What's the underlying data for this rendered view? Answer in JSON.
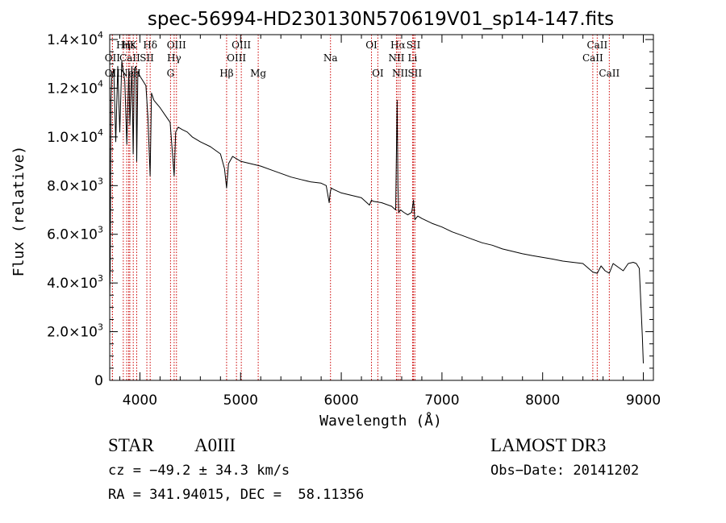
{
  "chart_data": {
    "type": "line",
    "title": "spec-56994-HD230130N570619V01_sp14-147.fits",
    "xlabel": "Wavelength (Å)",
    "ylabel": "Flux (relative)",
    "xlim": [
      3700,
      9100
    ],
    "ylim": [
      0,
      14200
    ],
    "xticks": [
      4000,
      5000,
      6000,
      7000,
      8000,
      9000
    ],
    "xtick_labels": [
      "4000",
      "5000",
      "6000",
      "7000",
      "8000",
      "9000"
    ],
    "yticks": [
      0,
      2000,
      4000,
      6000,
      8000,
      10000,
      12000,
      14000
    ],
    "ytick_labels": [
      {
        "mant": "0",
        "exp": ""
      },
      {
        "mant": "2.0×10",
        "exp": "3"
      },
      {
        "mant": "4.0×10",
        "exp": "3"
      },
      {
        "mant": "6.0×10",
        "exp": "3"
      },
      {
        "mant": "8.0×10",
        "exp": "3"
      },
      {
        "mant": "1.0×10",
        "exp": "4"
      },
      {
        "mant": "1.2×10",
        "exp": "4"
      },
      {
        "mant": "1.4×10",
        "exp": "4"
      }
    ],
    "spectrum": {
      "name": "flux",
      "x": [
        3700,
        3705,
        3712,
        3720,
        3740,
        3760,
        3780,
        3800,
        3820,
        3850,
        3870,
        3890,
        3900,
        3920,
        3933,
        3945,
        3960,
        3968,
        3980,
        4000,
        4030,
        4060,
        4080,
        4101,
        4115,
        4140,
        4200,
        4250,
        4300,
        4320,
        4340,
        4355,
        4380,
        4420,
        4470,
        4520,
        4600,
        4700,
        4800,
        4840,
        4861,
        4880,
        4920,
        5000,
        5100,
        5200,
        5300,
        5400,
        5500,
        5600,
        5700,
        5800,
        5850,
        5880,
        5890,
        5900,
        5920,
        6000,
        6100,
        6200,
        6280,
        6300,
        6320,
        6400,
        6500,
        6540,
        6555,
        6563,
        6570,
        6590,
        6620,
        6660,
        6700,
        6717,
        6731,
        6760,
        6800,
        6900,
        7000,
        7100,
        7200,
        7300,
        7400,
        7500,
        7600,
        7700,
        7800,
        7900,
        8000,
        8100,
        8200,
        8300,
        8400,
        8498,
        8542,
        8580,
        8620,
        8662,
        8700,
        8750,
        8800,
        8850,
        8900,
        8930,
        8960,
        8990,
        9000
      ],
      "y": [
        3400,
        4600,
        11500,
        12400,
        12800,
        9800,
        12900,
        10200,
        13100,
        12300,
        9700,
        12800,
        10500,
        12900,
        9300,
        12800,
        12900,
        9000,
        12700,
        12500,
        12300,
        12100,
        10800,
        8400,
        11800,
        11500,
        11200,
        10900,
        10600,
        9500,
        8400,
        10200,
        10400,
        10300,
        10200,
        10000,
        9800,
        9600,
        9300,
        8700,
        7900,
        8900,
        9200,
        9000,
        8900,
        8800,
        8650,
        8500,
        8350,
        8250,
        8150,
        8100,
        8000,
        7300,
        7700,
        7900,
        7850,
        7700,
        7600,
        7500,
        7200,
        7400,
        7350,
        7300,
        7150,
        7000,
        11500,
        8000,
        6900,
        7000,
        6900,
        6800,
        6900,
        7400,
        6600,
        6750,
        6650,
        6450,
        6300,
        6100,
        5950,
        5800,
        5650,
        5550,
        5400,
        5300,
        5200,
        5120,
        5050,
        4980,
        4900,
        4850,
        4800,
        4450,
        4400,
        4700,
        4500,
        4400,
        4800,
        4650,
        4500,
        4800,
        4850,
        4800,
        4600,
        1800,
        700
      ]
    },
    "line_markers": [
      {
        "label": "Hη",
        "wave": 3835,
        "row": 1
      },
      {
        "label": "Hε",
        "wave": 3889,
        "row": 1
      },
      {
        "label": "K",
        "wave": 3934,
        "row": 1
      },
      {
        "label": "Hδ",
        "wave": 4102,
        "row": 1
      },
      {
        "label": "OII",
        "wave": 3727,
        "row": 2
      },
      {
        "label": "CaII",
        "wave": 3900,
        "row": 2
      },
      {
        "label": "SII",
        "wave": 4069,
        "row": 2
      },
      {
        "label": "OII",
        "wave": 3727,
        "row": 3
      },
      {
        "label": "Ne",
        "wave": 3869,
        "row": 3
      },
      {
        "label": "H",
        "wave": 3968,
        "row": 3
      },
      {
        "label": "OIII",
        "wave": 4363,
        "row": 1
      },
      {
        "label": "Hγ",
        "wave": 4340,
        "row": 2
      },
      {
        "label": "G",
        "wave": 4304,
        "row": 3
      },
      {
        "label": "OIII",
        "wave": 5007,
        "row": 1
      },
      {
        "label": "OIII",
        "wave": 4959,
        "row": 2
      },
      {
        "label": "Hβ",
        "wave": 4861,
        "row": 3
      },
      {
        "label": "Mg",
        "wave": 5175,
        "row": 3
      },
      {
        "label": "Na",
        "wave": 5893,
        "row": 2
      },
      {
        "label": "OI",
        "wave": 6300,
        "row": 1
      },
      {
        "label": "OI",
        "wave": 6363,
        "row": 3
      },
      {
        "label": "Hα",
        "wave": 6563,
        "row": 1
      },
      {
        "label": "SII",
        "wave": 6717,
        "row": 1
      },
      {
        "label": "NII",
        "wave": 6548,
        "row": 2
      },
      {
        "label": "Li",
        "wave": 6708,
        "row": 2
      },
      {
        "label": "NII",
        "wave": 6584,
        "row": 3
      },
      {
        "label": "SII",
        "wave": 6731,
        "row": 3
      },
      {
        "label": "CaII",
        "wave": 8542,
        "row": 1
      },
      {
        "label": "CaII",
        "wave": 8498,
        "row": 2
      },
      {
        "label": "CaII",
        "wave": 8662,
        "row": 3
      }
    ]
  },
  "info": {
    "object_class": "STAR",
    "subclass": "A0III",
    "survey": "LAMOST DR3",
    "cz": "cz = −49.2 ± 34.3 km/s",
    "obs_date": "Obs−Date: 20141202",
    "coords": "RA = 341.94015, DEC =  58.11356"
  },
  "colors": {
    "spectrum": "#000000",
    "marker": "#cc0000",
    "axis": "#000000"
  }
}
